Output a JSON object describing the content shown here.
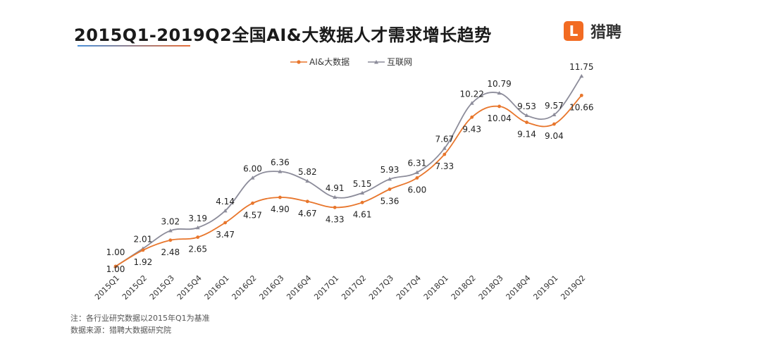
{
  "header": {
    "title": "2015Q1-2019Q2全国AI&大数据人才需求增长趋势",
    "brand_logo_char": "L",
    "brand_name": "猎聘"
  },
  "chart_data": {
    "type": "line",
    "title": "2015Q1-2019Q2全国AI&大数据人才需求增长趋势",
    "categories": [
      "2015Q1",
      "2015Q2",
      "2015Q3",
      "2015Q4",
      "2016Q1",
      "2016Q2",
      "2016Q3",
      "2016Q4",
      "2017Q1",
      "2017Q2",
      "2017Q3",
      "2017Q4",
      "2018Q1",
      "2018Q2",
      "2018Q3",
      "2018Q4",
      "2019Q1",
      "2019Q2"
    ],
    "series": [
      {
        "name": "AI&大数据",
        "color": "#e8762c",
        "marker": "circle",
        "values": [
          1.0,
          1.92,
          2.48,
          2.65,
          3.47,
          4.57,
          4.9,
          4.67,
          4.33,
          4.61,
          5.36,
          6.0,
          7.33,
          9.43,
          10.04,
          9.14,
          9.04,
          10.66
        ],
        "labels": [
          "1.00",
          "1.92",
          "2.48",
          "2.65",
          "3.47",
          "4.57",
          "4.90",
          "4.67",
          "4.33",
          "4.61",
          "5.36",
          "6.00",
          "7.33",
          "9.43",
          "10.04",
          "9.14",
          "9.04",
          "10.66"
        ]
      },
      {
        "name": "互联网",
        "color": "#8c8c9a",
        "marker": "triangle",
        "values": [
          1.0,
          2.01,
          3.02,
          3.19,
          4.14,
          6.0,
          6.36,
          5.82,
          4.91,
          5.15,
          5.93,
          6.31,
          7.67,
          10.22,
          10.79,
          9.53,
          9.57,
          11.75
        ],
        "labels": [
          "1.00",
          "2.01",
          "3.02",
          "3.19",
          "4.14",
          "6.00",
          "6.36",
          "5.82",
          "4.91",
          "5.15",
          "5.93",
          "6.31",
          "7.67",
          "10.22",
          "10.79",
          "9.53",
          "9.57",
          "11.75"
        ]
      }
    ],
    "legend_position": "top-center",
    "ylim": [
      1,
      11.75
    ],
    "grid": false
  },
  "notes": {
    "note": "注：各行业研究数据以2015年Q1为基准",
    "source": "数据来源：猎聘大数据研究院"
  }
}
